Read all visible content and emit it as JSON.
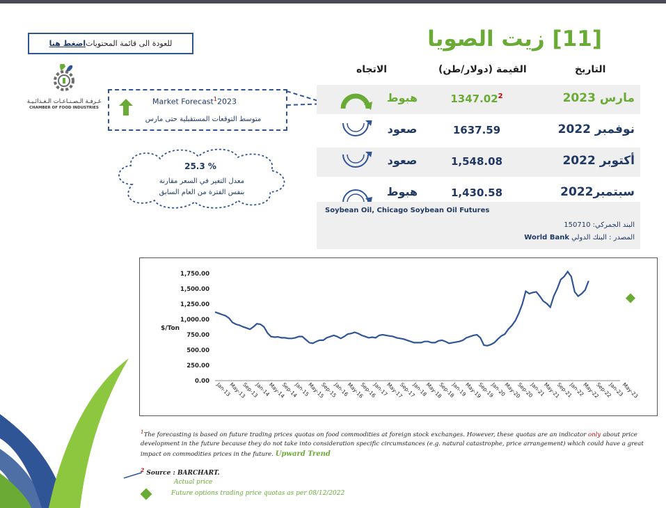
{
  "back_link": {
    "text": "للعودة الى قائمة المحتويات ",
    "link_text": "اضغط هنا"
  },
  "title": "[11] زيت الصويا",
  "logo": {
    "arabic": "غـرفـة الـصـنـاعـات الـغـذائـيـة",
    "english": "CHAMBER OF FOOD INDUSTRIES"
  },
  "forecast": {
    "title": "Market Forecast",
    "sup": "1",
    "year": "2023",
    "subtitle": "متوسط التوقعات المستقبلية حتى مارس"
  },
  "change": {
    "percent": "25.3 %",
    "line1": "معدل التغير في السعر مقارنة",
    "line2": "بنفس الفترة من العام السابق"
  },
  "table": {
    "headers": {
      "date": "التاريخ",
      "value": "القيمة (دولار/طن)",
      "direction": "الاتجاه"
    },
    "rows": [
      {
        "date": "مارس 2023",
        "value": "1347.02",
        "sup": "2",
        "direction": "هبوط",
        "icon": "arrow-down-arc-icon"
      },
      {
        "date": "نوفمبر 2022",
        "value": "1637.59",
        "sup": "",
        "direction": "صعود",
        "icon": "arrow-up-arc-icon"
      },
      {
        "date": "أكتوبر 2022",
        "value": "1,548.08",
        "sup": "",
        "direction": "صعود",
        "icon": "arrow-up-arc-icon"
      },
      {
        "date": "سبتمبر2022",
        "value": "1,430.58",
        "sup": "",
        "direction": "هبوط",
        "icon": "arrow-down-arc-icon"
      }
    ]
  },
  "source": {
    "name": "Soybean Oil, Chicago Soybean Oil Futures",
    "hs_code": "البند الجمركي: 150710",
    "provider_label": "المصدر : البنك الدولي",
    "provider_en": "World Bank"
  },
  "colors": {
    "green": "#6aab36",
    "navy": "#1f3864",
    "line": "#2f5597",
    "red": "#c00000"
  },
  "chart_data": {
    "type": "line",
    "ylabel": "$/Ton",
    "ylim": [
      0,
      1750
    ],
    "yticks": [
      "0.00",
      "250.00",
      "500.00",
      "750.00",
      "1,000.00",
      "1,250.00",
      "1,500.00",
      "1,750.00"
    ],
    "xlabels": [
      "Jan-13",
      "May-13",
      "Sep-13",
      "Jan-14",
      "May-14",
      "Sep-14",
      "Jan-15",
      "May-15",
      "Sep-15",
      "Jan-16",
      "May-16",
      "Sep-16",
      "Jan-17",
      "May-17",
      "Sep-17",
      "Jan-18",
      "May-18",
      "Sep-18",
      "Jan-19",
      "May-19",
      "Sep-19",
      "Jan-20",
      "May-20",
      "Sep-20",
      "Jan-21",
      "May-21",
      "Sep-21",
      "Jan-22",
      "May-22",
      "Sep-22",
      "Jan-23",
      "May-23"
    ],
    "series": [
      {
        "name": "Actual price",
        "values": [
          1120,
          1100,
          1080,
          1060,
          1020,
          950,
          920,
          905,
          880,
          860,
          840,
          880,
          930,
          920,
          880,
          780,
          720,
          710,
          715,
          700,
          700,
          690,
          690,
          700,
          720,
          720,
          670,
          620,
          610,
          640,
          660,
          660,
          700,
          720,
          740,
          720,
          690,
          720,
          760,
          770,
          790,
          770,
          740,
          720,
          700,
          710,
          700,
          740,
          750,
          740,
          730,
          720,
          700,
          690,
          680,
          660,
          640,
          620,
          620,
          620,
          640,
          640,
          620,
          620,
          650,
          660,
          640,
          610,
          620,
          630,
          640,
          660,
          700,
          720,
          740,
          750,
          700,
          580,
          570,
          590,
          620,
          680,
          730,
          760,
          840,
          900,
          980,
          1100,
          1250,
          1460,
          1420,
          1440,
          1450,
          1380,
          1300,
          1260,
          1200,
          1380,
          1500,
          1650,
          1700,
          1780,
          1700,
          1450,
          1380,
          1420,
          1480,
          1630
        ]
      },
      {
        "name": "Future options trading price quotas  as per 08/12/2022",
        "values": [
          1347.02
        ]
      }
    ]
  },
  "footnote": {
    "part1": "The forecasting is based on future trading prices quotas on food commodities at foreign stock exchanges. However, these quotas are an indicator ",
    "only": "only",
    "part2": " about price development in the future because they do not  take into  consideration specific circumstances  (e.g. natural catastrophe, price arrangement)  which could have a great impact  on commodities prices in the future. ",
    "trend": "Upward Trend",
    "sup1": "1"
  },
  "source2": {
    "sup": "2",
    "text": "Source : BARCHART."
  },
  "legend": {
    "actual": "Actual price",
    "future": "Future options trading price quotas  as per 08/12/2022"
  }
}
